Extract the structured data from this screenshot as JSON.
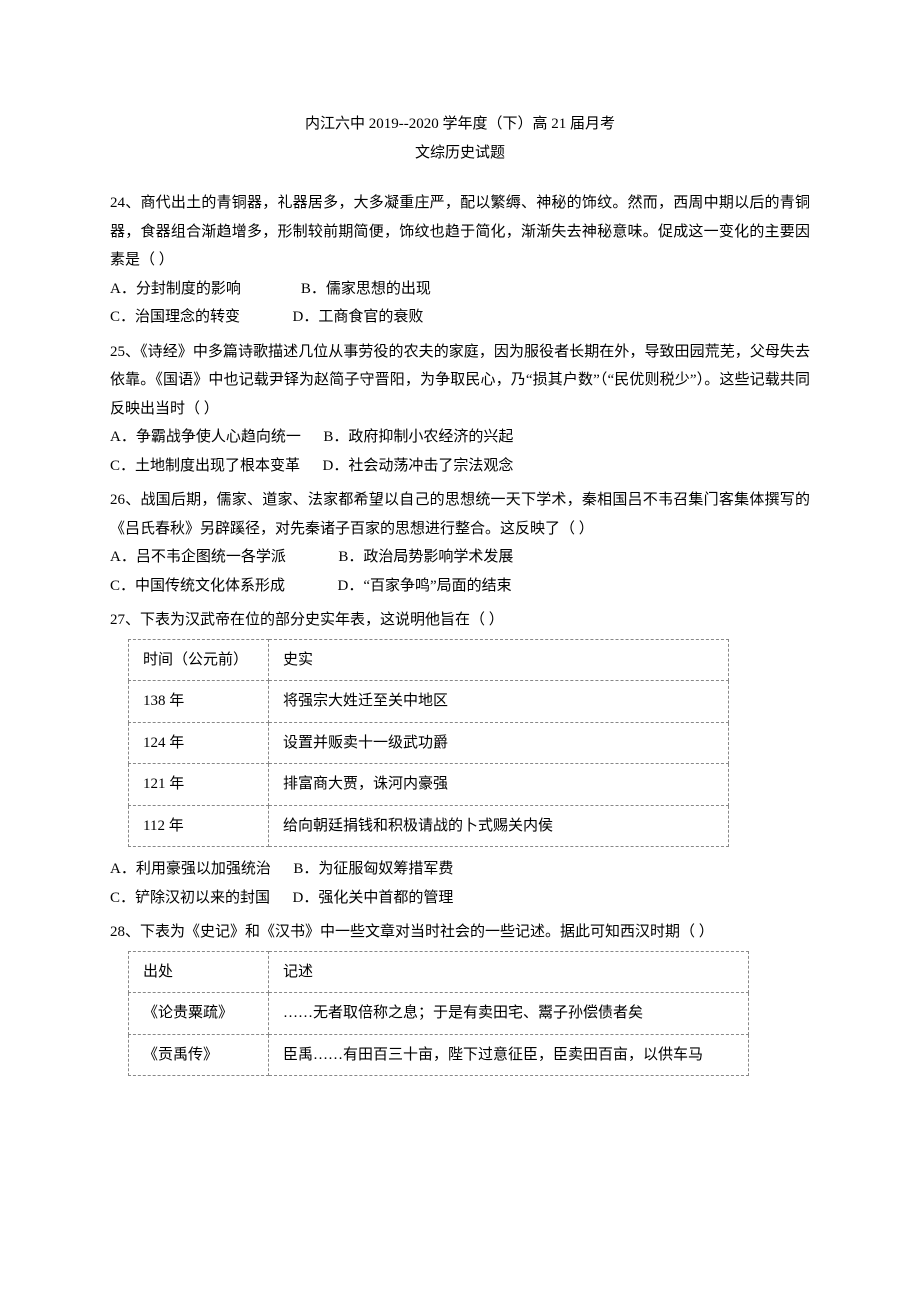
{
  "title": {
    "line1": "内江六中 2019--2020 学年度（下）高 21 届月考",
    "line2": "文综历史试题"
  },
  "questions": [
    {
      "num": "24",
      "text": "、商代出土的青铜器，礼器居多，大多凝重庄严，配以繁缛、神秘的饰纹。然而，西周中期以后的青铜器，食器组合渐趋增多，形制较前期简便，饰纹也趋于简化，渐渐失去神秘意味。促成这一变化的主要因素是（    ）",
      "options": [
        {
          "label": "A．分封制度的影响",
          "gap": "                "
        },
        {
          "label": "B．儒家思想的出现"
        },
        {
          "label": "C．治国理念的转变",
          "gap": "              "
        },
        {
          "label": "D．工商食官的衰败"
        }
      ],
      "layout": "two-col"
    },
    {
      "num": "25",
      "text": "、《诗经》中多篇诗歌描述几位从事劳役的农夫的家庭，因为服役者长期在外，导致田园荒芜，父母失去依靠。《国语》中也记载尹铎为赵简子守晋阳，为争取民心，乃“损其户数”（“民优则税少”）。这些记载共同反映出当时（    ）",
      "options": [
        {
          "label": "A．争霸战争使人心趋向统一",
          "gap": "      "
        },
        {
          "label": "B．政府抑制小农经济的兴起"
        },
        {
          "label": "C．土地制度出现了根本变革",
          "gap": "      "
        },
        {
          "label": "D．社会动荡冲击了宗法观念"
        }
      ],
      "layout": "two-col"
    },
    {
      "num": "26",
      "text": "、战国后期，儒家、道家、法家都希望以自己的思想统一天下学术，秦相国吕不韦召集门客集体撰写的《吕氏春秋》另辟蹊径，对先秦诸子百家的思想进行整合。这反映了（    ）",
      "options": [
        {
          "label": "A．吕不韦企图统一各学派",
          "gap": "              "
        },
        {
          "label": "B．政治局势影响学术发展"
        },
        {
          "label": "C．中国传统文化体系形成",
          "gap": "              "
        },
        {
          "label": "D．“百家争鸣”局面的结束"
        }
      ],
      "layout": "two-col"
    },
    {
      "num": "27",
      "text": "、下表为汉武帝在位的部分史实年表，这说明他旨在（    ）",
      "table": {
        "col1_class": "col-narrow-a",
        "col2_class": "col-wide-a",
        "rows": [
          [
            "时间（公元前）",
            "史实"
          ],
          [
            "138 年",
            "将强宗大姓迁至关中地区"
          ],
          [
            "124 年",
            "设置并贩卖十一级武功爵"
          ],
          [
            "121 年",
            "排富商大贾，诛河内豪强"
          ],
          [
            "112 年",
            "给向朝廷捐钱和积极请战的卜式赐关内侯"
          ]
        ]
      },
      "options": [
        {
          "label": "A．利用豪强以加强统治",
          "gap": "      "
        },
        {
          "label": "B．为征服匈奴筹措军费"
        },
        {
          "label": "C．铲除汉初以来的封国",
          "gap": "      "
        },
        {
          "label": "D．强化关中首都的管理"
        }
      ],
      "layout": "two-col"
    },
    {
      "num": "28",
      "text": "、下表为《史记》和《汉书》中一些文章对当时社会的一些记述。据此可知西汉时期（    ）",
      "table": {
        "col1_class": "col-narrow-b",
        "col2_class": "col-wide-b",
        "rows": [
          [
            "出处",
            "记述"
          ],
          [
            "《论贵粟疏》",
            "……无者取倍称之息；于是有卖田宅、鬻子孙偿债者矣"
          ],
          [
            "《贡禹传》",
            "臣禹……有田百三十亩，陛下过意征臣，臣卖田百亩，以供车马"
          ]
        ]
      }
    }
  ]
}
